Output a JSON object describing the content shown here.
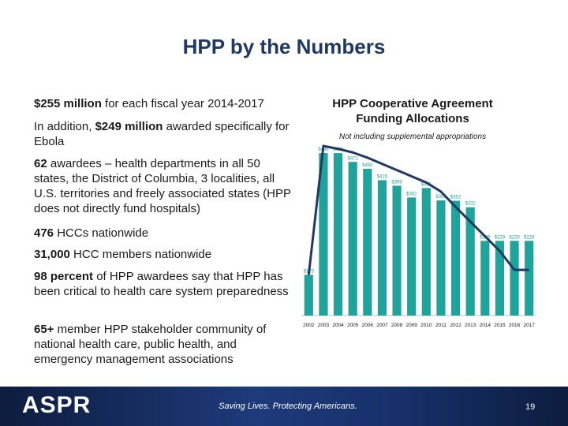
{
  "slide": {
    "title": "HPP by the Numbers",
    "footer_tagline": "Saving Lives. Protecting Americans.",
    "logo_text": "ASPR",
    "page_number": "19"
  },
  "bullets": [
    {
      "bold": "$255 million",
      "text": " for each fiscal year 2014-2017"
    },
    {
      "pre": "In addition, ",
      "bold": "$249 million",
      "text": " awarded specifically for Ebola"
    },
    {
      "bold": "62",
      "text": " awardees – health departments in all 50 states, the District of Columbia, 3 localities, all U.S. territories and freely associated states (HPP does not directly fund hospitals)"
    },
    {
      "bold": "476",
      "text": " HCCs nationwide"
    },
    {
      "bold": "31,000",
      "text": " HCC members nationwide"
    },
    {
      "bold": "98 percent",
      "text": " of HPP awardees say that HPP has been critical to health care system preparedness"
    },
    {
      "bold": "65+",
      "text": " member HPP stakeholder community of national health care, public health, and emergency management associations"
    }
  ],
  "chart_data": {
    "type": "bar",
    "title": "HPP Cooperative Agreement Funding Allocations",
    "subtitle": "Not including supplemental appropriations",
    "categories": [
      "2002",
      "2003",
      "2004",
      "2005",
      "2006",
      "2007",
      "2008",
      "2009",
      "2010",
      "2011",
      "2012",
      "2013",
      "2014",
      "2015",
      "2016",
      "2017"
    ],
    "values": [
      125,
      498,
      498,
      471,
      450,
      415,
      398,
      362,
      391,
      353,
      352,
      332,
      229,
      229,
      229,
      229
    ],
    "data_labels": [
      "$125",
      "$498",
      "$498",
      "$471",
      "$450",
      "$415",
      "$398",
      "$362",
      "$391",
      "$353",
      "$352",
      "$332",
      "$229",
      "$229",
      "$229",
      "$229"
    ],
    "ylim": [
      0,
      520
    ],
    "bar_color": "#1fa39a",
    "trend_color": "#1f3864",
    "trend_values": [
      125,
      520,
      511,
      500,
      484,
      465,
      446,
      427,
      408,
      380,
      333,
      288,
      243,
      198,
      140,
      140
    ]
  }
}
